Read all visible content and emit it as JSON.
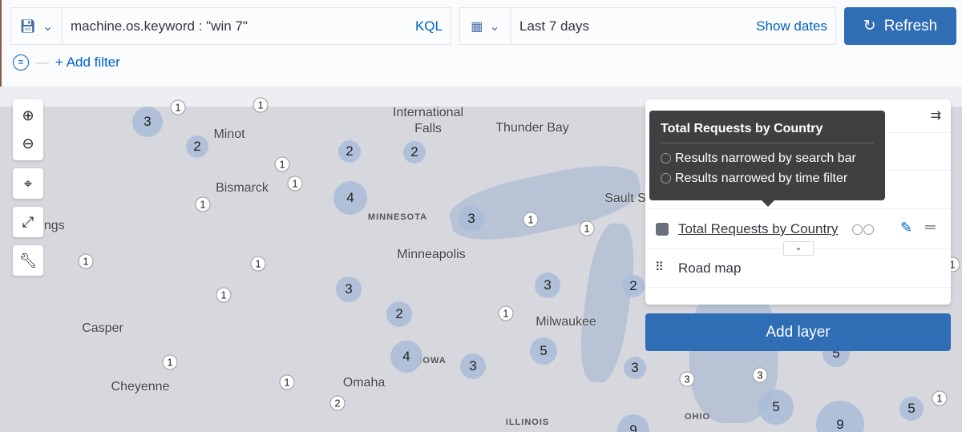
{
  "query": {
    "value": "machine.os.keyword : \"win 7\"",
    "language": "KQL"
  },
  "time": {
    "value": "Last 7 days",
    "show_dates": "Show dates"
  },
  "refresh_label": "Refresh",
  "add_filter": "+ Add filter",
  "map": {
    "cities": [
      "Minot",
      "International",
      "Falls",
      "Thunder Bay",
      "Bismarck",
      "Sault S",
      "ings",
      "Minneapolis",
      "Casper",
      "Milwaukee",
      "Cheyenne",
      "Omaha"
    ],
    "states": [
      "MINNESOTA",
      "IOWA",
      "ILLINOIS",
      "OHIO"
    ],
    "clusters": [
      "3",
      "1",
      "1",
      "2",
      "2",
      "2",
      "1",
      "1",
      "4",
      "1",
      "3",
      "1",
      "1",
      "1",
      "1",
      "3",
      "3",
      "2",
      "1",
      "2",
      "1",
      "4",
      "5",
      "3",
      "3",
      "1",
      "1",
      "2",
      "3",
      "3",
      "5",
      "5",
      "9",
      "5",
      "1",
      "1",
      "9"
    ],
    "controls": [
      "zoom-in-icon",
      "zoom-out-icon",
      "crosshair-icon",
      "fullscreen-icon",
      "tools-icon"
    ]
  },
  "layers": {
    "items": [
      {
        "name": "Total Requests by Country",
        "color": "#6a717d"
      },
      {
        "name": "Road map"
      }
    ],
    "add_layer": "Add layer"
  },
  "tooltip": {
    "title": "Total Requests by Country",
    "lines": [
      "Results narrowed by search bar",
      "Results narrowed by time filter"
    ]
  },
  "colors": {
    "primary": "#2f6db5",
    "link": "#0061c2"
  }
}
